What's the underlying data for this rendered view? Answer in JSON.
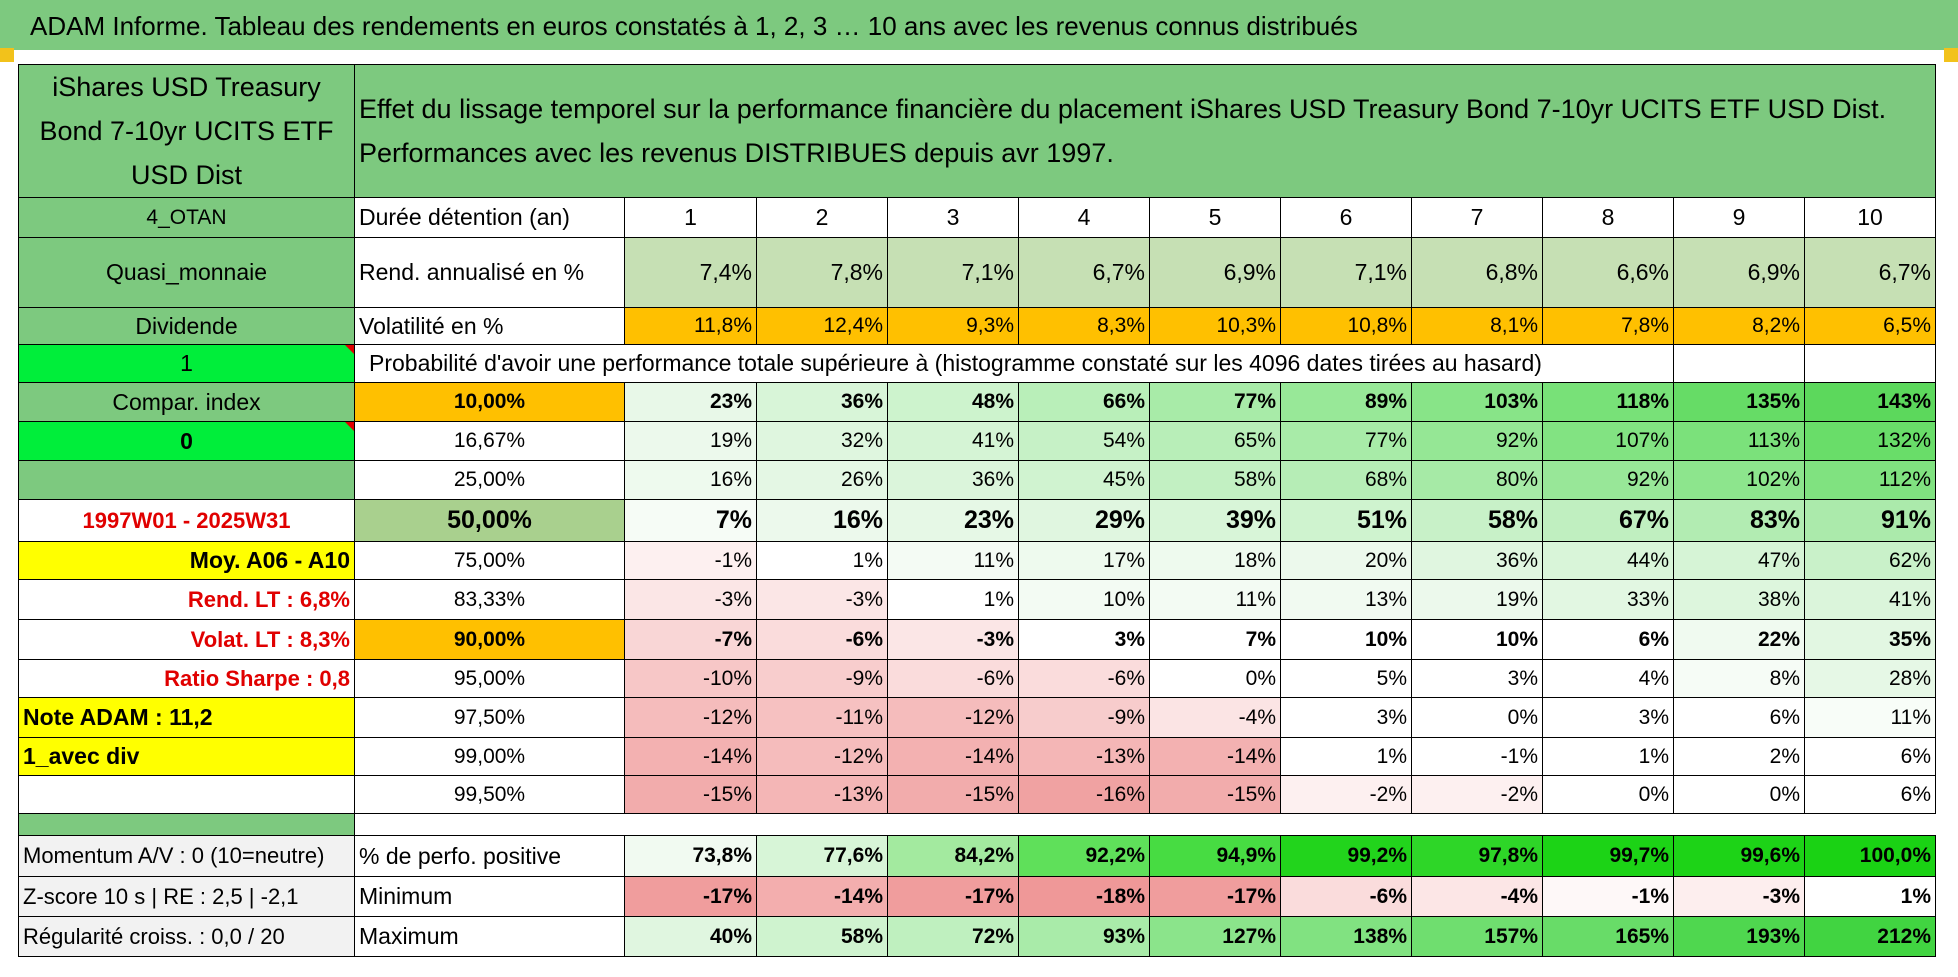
{
  "title": "ADAM Informe. Tableau des rendements en euros constatés à 1, 2, 3 … 10 ans avec les revenus connus distribués",
  "fund_name": "iShares USD Treasury Bond 7-10yr UCITS ETF USD Dist",
  "description_line1": "Effet du lissage temporel sur la performance financière du placement iShares USD Treasury Bond 7-10yr UCITS ETF USD Dist.",
  "description_line2": "Performances avec les revenus DISTRIBUES depuis avr 1997.",
  "left": {
    "category": "4_OTAN",
    "asset_class": "Quasi_monnaie",
    "dividend_label": "Dividende",
    "dividend_value": "1",
    "compar_index_label": "Compar. index",
    "compar_index_value": "0",
    "period": "1997W01 - 2025W31",
    "moy": "Moy. A06 - A10",
    "rend_lt": "Rend. LT :    6,8%",
    "volat_lt": "Volat. LT :    8,3%",
    "sharpe": "Ratio Sharpe :     0,8",
    "note": "Note ADAM : 11,2",
    "div_mode": "1_avec div",
    "momentum": "Momentum A/V : 0 (10=neutre)",
    "zscore": "Z-score 10 s | RE : 2,5 | -2,1",
    "regularite": "Régularité croiss. : 0,0 / 20"
  },
  "labels": {
    "duration": "Durée détention (an)",
    "rend": "Rend. annualisé en %",
    "vol": "Volatilité en %",
    "prob": "Probabilité d'avoir une performance totale supérieure à (histogramme constaté sur les 4096 dates tirées au hasard)",
    "pct_pos": "% de perfo. positive",
    "minimum": "Minimum",
    "maximum": "Maximum"
  },
  "years": [
    "1",
    "2",
    "3",
    "4",
    "5",
    "6",
    "7",
    "8",
    "9",
    "10"
  ],
  "rendement": [
    "7,4%",
    "7,8%",
    "7,1%",
    "6,7%",
    "6,9%",
    "7,1%",
    "6,8%",
    "6,6%",
    "6,9%",
    "6,7%"
  ],
  "volatilite": [
    "11,8%",
    "12,4%",
    "9,3%",
    "8,3%",
    "10,3%",
    "10,8%",
    "8,1%",
    "7,8%",
    "8,2%",
    "6,5%"
  ],
  "quantiles": [
    {
      "p": "10,00%",
      "v": [
        "23%",
        "36%",
        "48%",
        "66%",
        "77%",
        "89%",
        "103%",
        "118%",
        "135%",
        "143%"
      ]
    },
    {
      "p": "16,67%",
      "v": [
        "19%",
        "32%",
        "41%",
        "54%",
        "65%",
        "77%",
        "92%",
        "107%",
        "113%",
        "132%"
      ]
    },
    {
      "p": "25,00%",
      "v": [
        "16%",
        "26%",
        "36%",
        "45%",
        "58%",
        "68%",
        "80%",
        "92%",
        "102%",
        "112%"
      ]
    },
    {
      "p": "50,00%",
      "v": [
        "7%",
        "16%",
        "23%",
        "29%",
        "39%",
        "51%",
        "58%",
        "67%",
        "83%",
        "91%"
      ]
    },
    {
      "p": "75,00%",
      "v": [
        "-1%",
        "1%",
        "11%",
        "17%",
        "18%",
        "20%",
        "36%",
        "44%",
        "47%",
        "62%"
      ]
    },
    {
      "p": "83,33%",
      "v": [
        "-3%",
        "-3%",
        "1%",
        "10%",
        "11%",
        "13%",
        "19%",
        "33%",
        "38%",
        "41%"
      ]
    },
    {
      "p": "90,00%",
      "v": [
        "-7%",
        "-6%",
        "-3%",
        "3%",
        "7%",
        "10%",
        "10%",
        "6%",
        "22%",
        "35%"
      ]
    },
    {
      "p": "95,00%",
      "v": [
        "-10%",
        "-9%",
        "-6%",
        "-6%",
        "0%",
        "5%",
        "3%",
        "4%",
        "8%",
        "28%"
      ]
    },
    {
      "p": "97,50%",
      "v": [
        "-12%",
        "-11%",
        "-12%",
        "-9%",
        "-4%",
        "3%",
        "0%",
        "3%",
        "6%",
        "11%"
      ]
    },
    {
      "p": "99,00%",
      "v": [
        "-14%",
        "-12%",
        "-14%",
        "-13%",
        "-14%",
        "1%",
        "-1%",
        "1%",
        "2%",
        "6%"
      ]
    },
    {
      "p": "99,50%",
      "v": [
        "-15%",
        "-13%",
        "-15%",
        "-16%",
        "-15%",
        "-2%",
        "-2%",
        "0%",
        "0%",
        "6%"
      ]
    }
  ],
  "pct_positive": [
    "73,8%",
    "77,6%",
    "84,2%",
    "92,2%",
    "94,9%",
    "99,2%",
    "97,8%",
    "99,7%",
    "99,6%",
    "100,0%"
  ],
  "minimum": [
    "-17%",
    "-14%",
    "-17%",
    "-18%",
    "-17%",
    "-6%",
    "-4%",
    "-1%",
    "-3%",
    "1%"
  ],
  "maximum": [
    "40%",
    "58%",
    "72%",
    "93%",
    "127%",
    "138%",
    "157%",
    "165%",
    "193%",
    "212%"
  ],
  "colors": {
    "header_green": "#7dc97f",
    "bright_green": "#00ee3a",
    "orange": "#ffc000",
    "yellow": "#ffff00",
    "red_text": "#e00000"
  }
}
